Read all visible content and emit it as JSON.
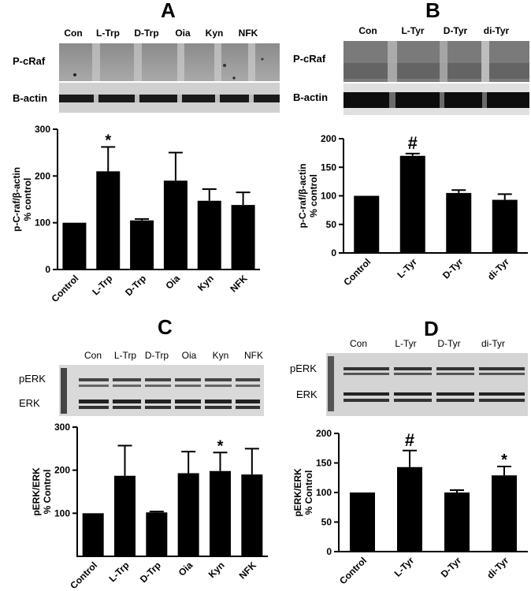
{
  "panels": {
    "A": {
      "letter": "A",
      "lanes": [
        "Con",
        "L-Trp",
        "D-Trp",
        "Oia",
        "Kyn",
        "NFK"
      ],
      "blot_rows": [
        "P-cRaf",
        "B-actin"
      ]
    },
    "B": {
      "letter": "B",
      "lanes": [
        "Con",
        "L-Tyr",
        "D-Tyr",
        "di-Tyr"
      ],
      "blot_rows": [
        "P-cRaf",
        "B-actin"
      ]
    },
    "C": {
      "letter": "C",
      "lanes": [
        "Con",
        "L-Trp",
        "D-Trp",
        "Oia",
        "Kyn",
        "NFK"
      ],
      "blot_rows": [
        "pERK",
        "ERK"
      ]
    },
    "D": {
      "letter": "D",
      "lanes": [
        "Con",
        "L-Tyr",
        "D-Tyr",
        "di-Tyr"
      ],
      "blot_rows": [
        "pERK",
        "ERK"
      ]
    }
  },
  "chart_data": [
    {
      "id": "A",
      "type": "bar",
      "categories": [
        "Control",
        "L-Trp",
        "D-Trp",
        "Oia",
        "Kyn",
        "NFK"
      ],
      "values": [
        100,
        210,
        105,
        190,
        147,
        138
      ],
      "errors": [
        0,
        52,
        3,
        60,
        25,
        27
      ],
      "annotations": [
        "",
        "*",
        "",
        "",
        "",
        ""
      ],
      "ylabel": "p-C-raf/β-actin\n% control",
      "yticks": [
        0,
        100,
        200,
        300
      ],
      "ylim": [
        0,
        300
      ]
    },
    {
      "id": "B",
      "type": "bar",
      "categories": [
        "Control",
        "L-Tyr",
        "D-Tyr",
        "di-Tyr"
      ],
      "values": [
        100,
        170,
        105,
        93
      ],
      "errors": [
        0,
        4,
        5,
        10
      ],
      "annotations": [
        "",
        "#",
        "",
        ""
      ],
      "ylabel": "p-C-raf/β-actin\n% control",
      "yticks": [
        0,
        50,
        100,
        150,
        200
      ],
      "ylim": [
        0,
        200
      ]
    },
    {
      "id": "C",
      "type": "bar",
      "categories": [
        "Control",
        "L-Trp",
        "D-Trp",
        "Oia",
        "Kyn",
        "NFK"
      ],
      "values": [
        100,
        187,
        102,
        193,
        198,
        190
      ],
      "errors": [
        0,
        70,
        2,
        50,
        43,
        60
      ],
      "annotations": [
        "",
        "",
        "",
        "",
        "*",
        ""
      ],
      "ylabel": "pERK/ERK\n% Control",
      "yticks": [
        100,
        200,
        300
      ],
      "ylim": [
        0,
        300
      ]
    },
    {
      "id": "D",
      "type": "bar",
      "categories": [
        "Control",
        "L-Tyr",
        "D-Tyr",
        "di-Tyr"
      ],
      "values": [
        100,
        143,
        100,
        129
      ],
      "errors": [
        0,
        28,
        4,
        15
      ],
      "annotations": [
        "",
        "#",
        "",
        "*"
      ],
      "ylabel": "pERK/ERK\n% Control",
      "yticks": [
        0,
        50,
        100,
        150,
        200
      ],
      "ylim": [
        0,
        200
      ]
    }
  ]
}
